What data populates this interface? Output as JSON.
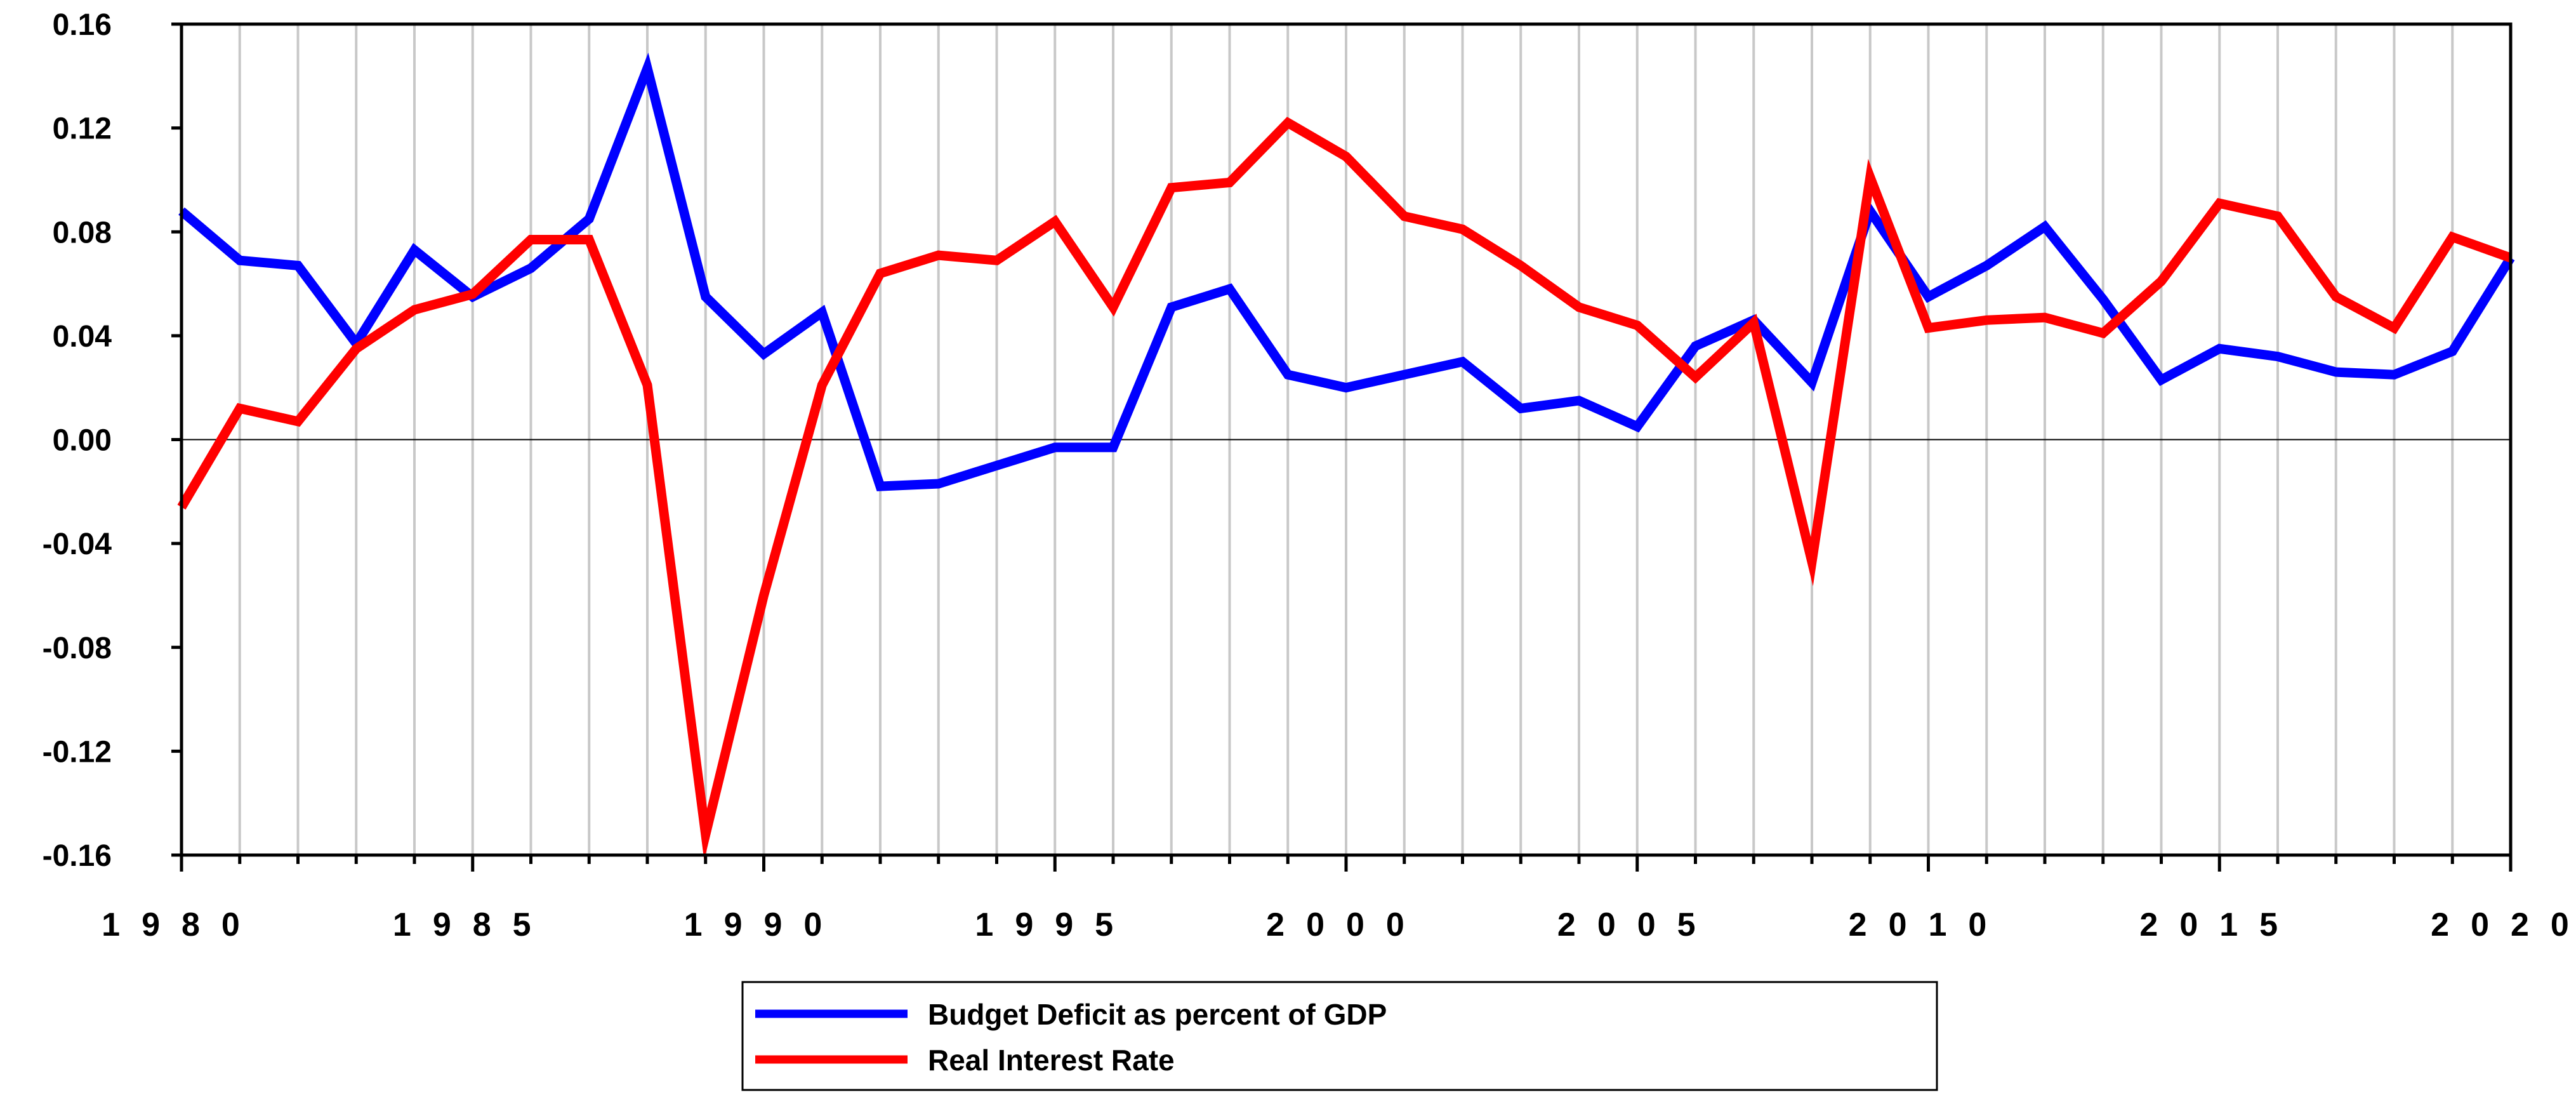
{
  "chart_data": {
    "type": "line",
    "title": "",
    "xlabel": "",
    "ylabel": "",
    "xlim": [
      1980,
      2020
    ],
    "ylim": [
      -0.16,
      0.16
    ],
    "grid": "vertical",
    "x_ticks": [
      "1980",
      "1985",
      "1990",
      "1995",
      "2000",
      "2005",
      "2010",
      "2015",
      "2020"
    ],
    "y_ticks": [
      "0.16",
      "0.12",
      "0.08",
      "0.04",
      "0.00",
      "-0.04",
      "-0.08",
      "-0.12",
      "-0.16"
    ],
    "legend_position": "bottom-center",
    "x": [
      1980,
      1981,
      1982,
      1983,
      1984,
      1985,
      1986,
      1987,
      1988,
      1989,
      1990,
      1991,
      1992,
      1993,
      1994,
      1995,
      1996,
      1997,
      1998,
      1999,
      2000,
      2001,
      2002,
      2003,
      2004,
      2005,
      2006,
      2007,
      2008,
      2009,
      2010,
      2011,
      2012,
      2013,
      2014,
      2015,
      2016,
      2017,
      2018,
      2019,
      2020
    ],
    "series": [
      {
        "name": "Budget Deficit as percent of GDP",
        "color": "#0000ff",
        "values": [
          0.088,
          0.069,
          0.067,
          0.037,
          0.073,
          0.055,
          0.066,
          0.085,
          0.143,
          0.055,
          0.033,
          0.049,
          -0.018,
          -0.017,
          -0.01,
          -0.003,
          -0.003,
          0.051,
          0.058,
          0.025,
          0.02,
          0.025,
          0.03,
          0.012,
          0.015,
          0.005,
          0.036,
          0.046,
          0.022,
          0.088,
          0.055,
          0.067,
          0.082,
          0.054,
          0.023,
          0.035,
          0.032,
          0.026,
          0.025,
          0.034,
          0.07
        ]
      },
      {
        "name": "Real Interest Rate",
        "color": "#ff0000",
        "values": [
          -0.026,
          0.012,
          0.007,
          0.035,
          0.05,
          0.056,
          0.077,
          0.077,
          0.021,
          -0.152,
          -0.06,
          0.021,
          0.064,
          0.071,
          0.069,
          0.084,
          0.051,
          0.097,
          0.099,
          0.122,
          0.109,
          0.086,
          0.081,
          0.067,
          0.051,
          0.044,
          0.024,
          0.045,
          -0.047,
          0.101,
          0.043,
          0.046,
          0.047,
          0.041,
          0.061,
          0.091,
          0.086,
          0.055,
          0.043,
          0.078,
          0.07
        ]
      }
    ]
  }
}
